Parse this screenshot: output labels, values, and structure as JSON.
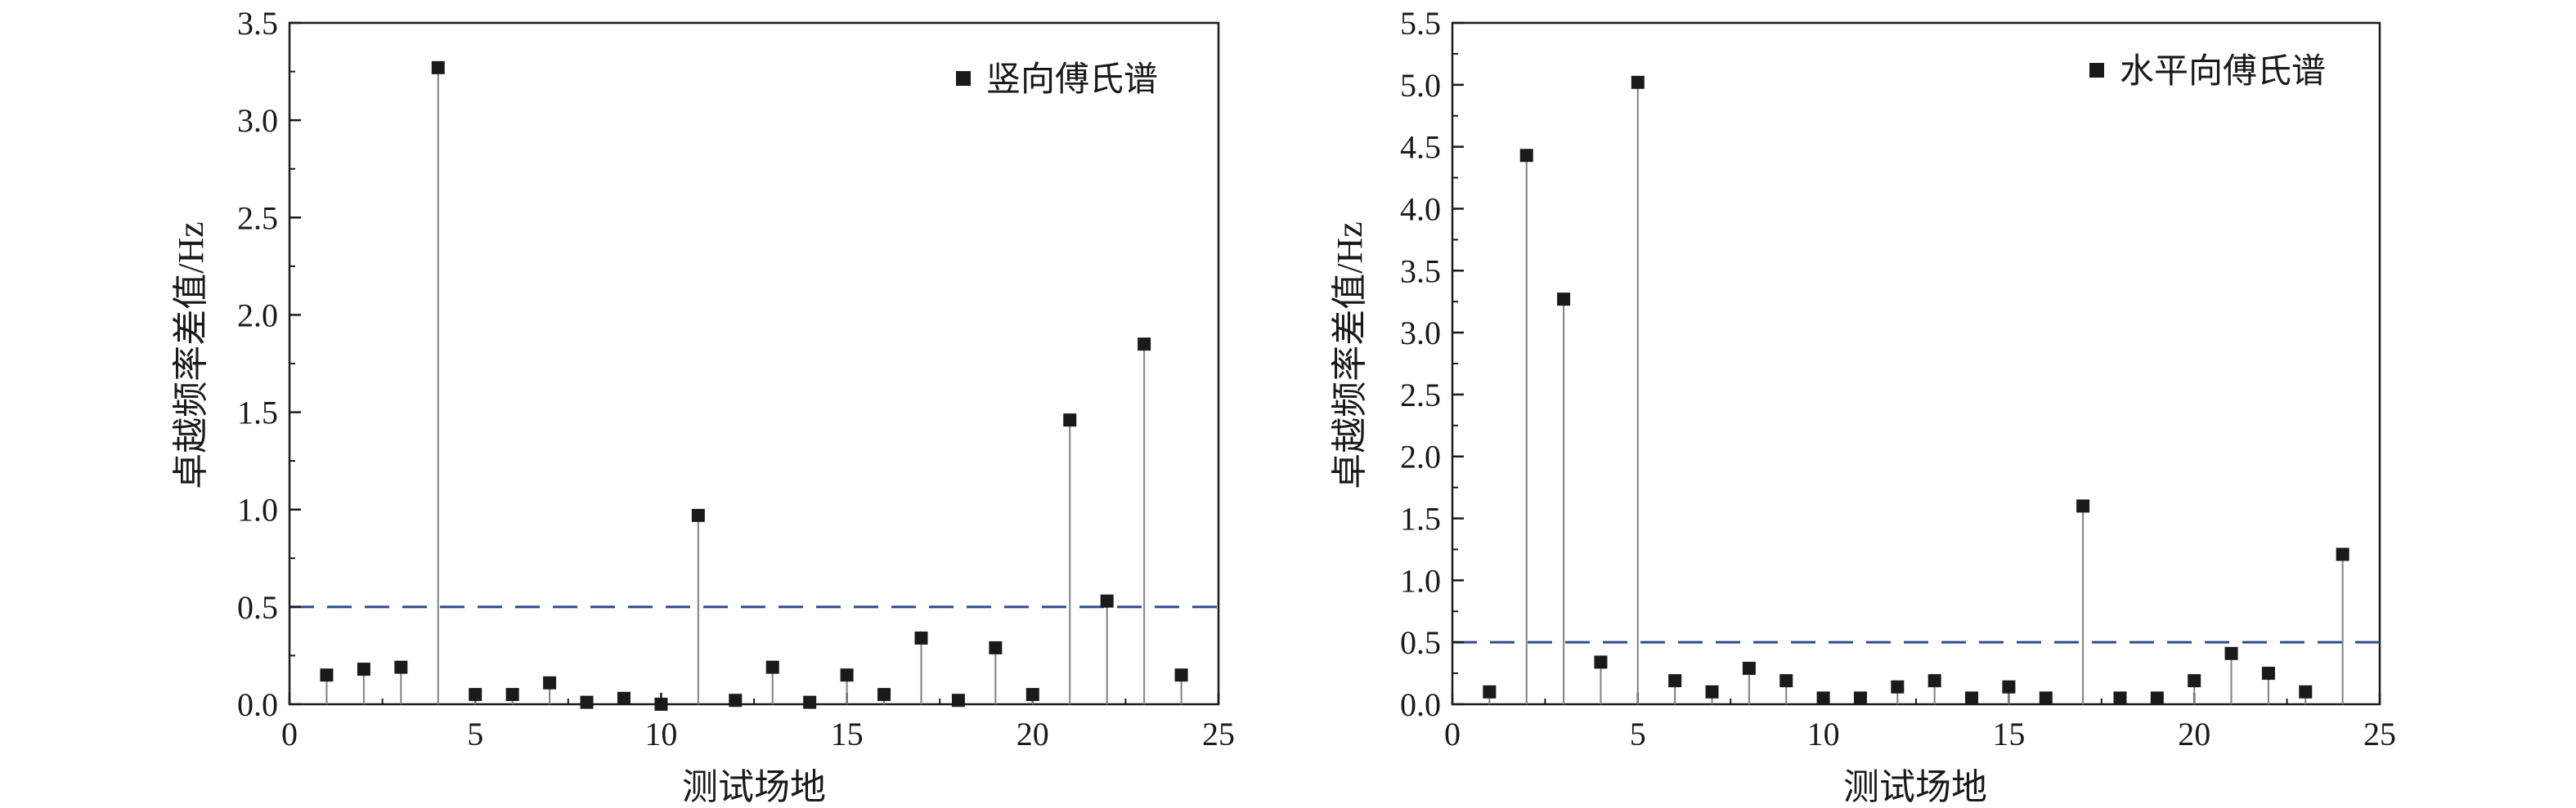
{
  "colors": {
    "marker": "#1a1a1a",
    "stem": "#808080",
    "axis": "#1a1a1a",
    "threshold": "#2e4a8c"
  },
  "chart_data": [
    {
      "type": "scatter",
      "title": "",
      "xlabel": "测试场地",
      "ylabel": "卓越频率差值/Hz",
      "xlim": [
        0,
        25
      ],
      "ylim": [
        0,
        3.5
      ],
      "xticks": [
        "0",
        "5",
        "10",
        "15",
        "20",
        "25"
      ],
      "yticks": [
        "0.0",
        "0.5",
        "1.0",
        "1.5",
        "2.0",
        "2.5",
        "3.0",
        "3.5"
      ],
      "threshold": 0.5,
      "legend_position": "top-right",
      "grid": false,
      "series": [
        {
          "name": "竖向傅氏谱",
          "x": [
            1,
            2,
            3,
            4,
            5,
            6,
            7,
            8,
            9,
            10,
            11,
            12,
            13,
            14,
            15,
            16,
            17,
            18,
            19,
            20,
            21,
            22,
            23,
            24
          ],
          "y": [
            0.15,
            0.18,
            0.19,
            3.27,
            0.05,
            0.05,
            0.11,
            0.01,
            0.03,
            0.0,
            0.97,
            0.02,
            0.19,
            0.01,
            0.15,
            0.05,
            0.34,
            0.02,
            0.29,
            0.05,
            1.46,
            0.53,
            1.85,
            0.15
          ]
        }
      ]
    },
    {
      "type": "scatter",
      "title": "",
      "xlabel": "测试场地",
      "ylabel": "卓越频率差值/Hz",
      "xlim": [
        0,
        25
      ],
      "ylim": [
        0,
        5.5
      ],
      "xticks": [
        "0",
        "5",
        "10",
        "15",
        "20",
        "25"
      ],
      "yticks": [
        "0.0",
        "0.5",
        "1.0",
        "1.5",
        "2.0",
        "2.5",
        "3.0",
        "3.5",
        "4.0",
        "4.5",
        "5.0",
        "5.5"
      ],
      "threshold": 0.5,
      "legend_position": "top-right",
      "grid": false,
      "series": [
        {
          "name": "水平向傅氏谱",
          "x": [
            1,
            2,
            3,
            4,
            5,
            6,
            7,
            8,
            9,
            10,
            11,
            12,
            13,
            14,
            15,
            16,
            17,
            18,
            19,
            20,
            21,
            22,
            23,
            24
          ],
          "y": [
            0.1,
            4.43,
            3.27,
            0.34,
            5.02,
            0.19,
            0.1,
            0.29,
            0.19,
            0.05,
            0.05,
            0.14,
            0.19,
            0.05,
            0.14,
            0.05,
            1.6,
            0.05,
            0.05,
            0.19,
            0.41,
            0.25,
            0.1,
            1.21
          ]
        }
      ]
    }
  ]
}
